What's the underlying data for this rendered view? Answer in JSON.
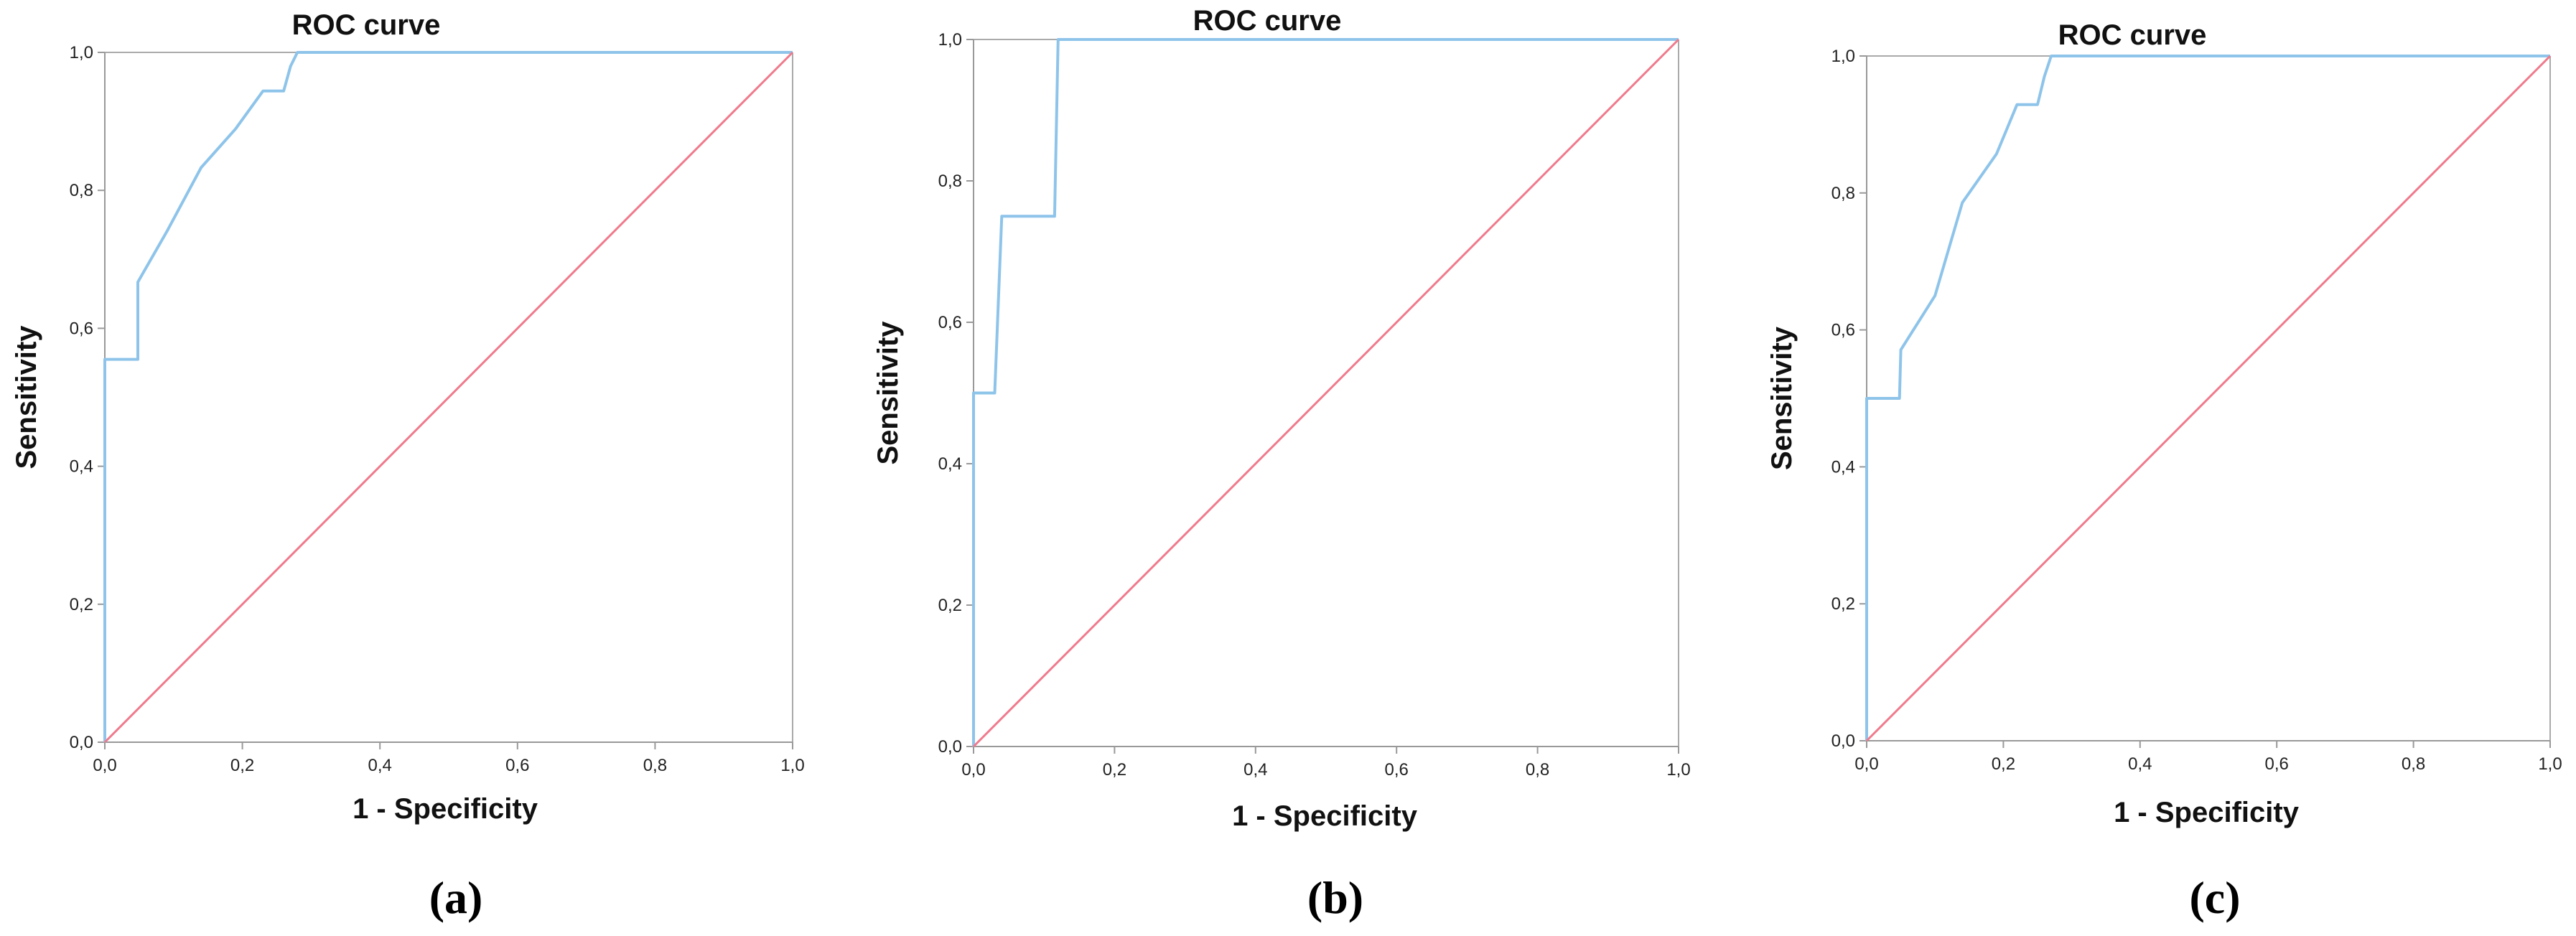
{
  "chart_data": [
    {
      "type": "line",
      "panel_label": "(a)",
      "title": "ROC curve",
      "xlabel": "1 - Specificity",
      "ylabel": "Sensitivity",
      "xlim": [
        0,
        1
      ],
      "ylim": [
        0,
        1
      ],
      "x_ticks": [
        "0,0",
        "0,2",
        "0,4",
        "0,6",
        "0,8",
        "1,0"
      ],
      "y_ticks": [
        "0,0",
        "0,2",
        "0,4",
        "0,6",
        "0,8",
        "1,0"
      ],
      "grid": false,
      "series": [
        {
          "role": "roc",
          "color": "#8ec4ea",
          "x": [
            0,
            0,
            0.048,
            0.048,
            0.09,
            0.14,
            0.19,
            0.23,
            0.26,
            0.27,
            0.28,
            1.0
          ],
          "y": [
            0,
            0.555,
            0.555,
            0.667,
            0.74,
            0.833,
            0.889,
            0.944,
            0.944,
            0.98,
            1.0,
            1.0
          ]
        },
        {
          "role": "reference",
          "color": "#f07a8c",
          "x": [
            0,
            1
          ],
          "y": [
            0,
            1
          ]
        }
      ]
    },
    {
      "type": "line",
      "panel_label": "(b)",
      "title": "ROC curve",
      "xlabel": "1 - Specificity",
      "ylabel": "Sensitivity",
      "xlim": [
        0,
        1
      ],
      "ylim": [
        0,
        1
      ],
      "x_ticks": [
        "0,0",
        "0,2",
        "0,4",
        "0,6",
        "0,8",
        "1,0"
      ],
      "y_ticks": [
        "0,0",
        "0,2",
        "0,4",
        "0,6",
        "0,8",
        "1,0"
      ],
      "grid": false,
      "series": [
        {
          "role": "roc",
          "color": "#8ec4ea",
          "x": [
            0,
            0,
            0.03,
            0.04,
            0.115,
            0.12,
            1.0
          ],
          "y": [
            0,
            0.5,
            0.5,
            0.75,
            0.75,
            1.0,
            1.0
          ]
        },
        {
          "role": "reference",
          "color": "#f07a8c",
          "x": [
            0,
            1
          ],
          "y": [
            0,
            1
          ]
        }
      ]
    },
    {
      "type": "line",
      "panel_label": "(c)",
      "title": "ROC curve",
      "xlabel": "1 - Specificity",
      "ylabel": "Sensitivity",
      "xlim": [
        0,
        1
      ],
      "ylim": [
        0,
        1
      ],
      "x_ticks": [
        "0,0",
        "0,2",
        "0,4",
        "0,6",
        "0,8",
        "1,0"
      ],
      "y_ticks": [
        "0,0",
        "0,2",
        "0,4",
        "0,6",
        "0,8",
        "1,0"
      ],
      "grid": false,
      "series": [
        {
          "role": "roc",
          "color": "#8ec4ea",
          "x": [
            0,
            0,
            0.048,
            0.05,
            0.1,
            0.14,
            0.19,
            0.22,
            0.25,
            0.26,
            0.27,
            1.0
          ],
          "y": [
            0,
            0.5,
            0.5,
            0.571,
            0.65,
            0.786,
            0.857,
            0.929,
            0.929,
            0.97,
            1.0,
            1.0
          ]
        },
        {
          "role": "reference",
          "color": "#f07a8c",
          "x": [
            0,
            1
          ],
          "y": [
            0,
            1
          ]
        }
      ]
    }
  ]
}
